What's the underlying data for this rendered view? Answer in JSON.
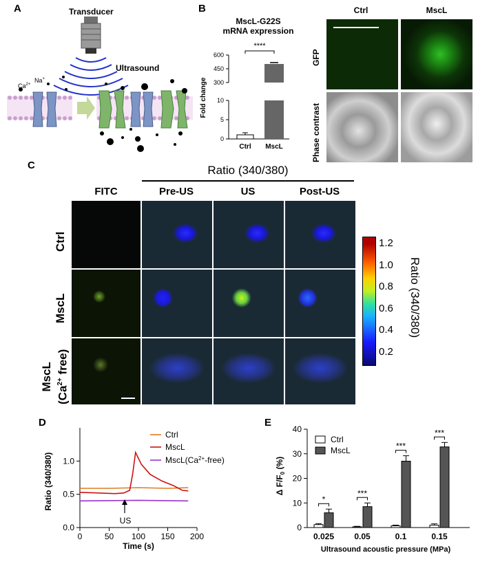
{
  "panels": {
    "a": "A",
    "b": "B",
    "c": "C",
    "d": "D",
    "e": "E"
  },
  "panel_a": {
    "transducer": "Transducer",
    "ultrasound": "Ultrasound",
    "ca_ion": "Ca",
    "ca_charge": "2+",
    "na_ion": "Na",
    "na_charge": "+"
  },
  "panel_b": {
    "title_line1": "MscL-G22S",
    "title_line2": "mRNA expression",
    "ylabel": "Fold change",
    "significance": "****",
    "image_cols": [
      "Ctrl",
      "MscL"
    ],
    "image_rows": [
      "GFP",
      "Phase contrast"
    ],
    "chart_data": {
      "type": "bar",
      "title": "MscL-G22S mRNA expression",
      "ylabel": "Fold change",
      "categories": [
        "Ctrl",
        "MscL"
      ],
      "values": [
        1,
        495
      ],
      "errors": [
        0.3,
        6
      ],
      "broken_axis": true,
      "yticks": [
        "0",
        "5",
        "10",
        "300",
        "450",
        "600"
      ]
    }
  },
  "panel_c": {
    "ratio_header": "Ratio (340/380)",
    "cols": [
      "FITC",
      "Pre-US",
      "US",
      "Post-US"
    ],
    "rows": [
      "Ctrl",
      "MscL"
    ],
    "row3_line1": "MscL",
    "row3_line2_pre": "(Ca",
    "row3_line2_sup": "2+",
    "row3_line2_post": " free)",
    "colorbar_label": "Ratio (340/380)",
    "colorbar_ticks": [
      "1.2",
      "1.0",
      "0.8",
      "0.6",
      "0.4",
      "0.2"
    ]
  },
  "panel_d": {
    "ylabel": "Ratio (340/380)",
    "xlabel": "Time (s)",
    "xticks": [
      "0",
      "50",
      "100",
      "150",
      "200"
    ],
    "yticks": [
      "0.0",
      "0.5",
      "1.0"
    ],
    "us_label": "US",
    "chart_data": {
      "type": "line",
      "xlabel": "Time (s)",
      "ylabel": "Ratio (340/380)",
      "xlim": [
        0,
        200
      ],
      "ylim": [
        0,
        1.5
      ],
      "series": [
        {
          "name": "Ctrl",
          "color": "#e07a1e",
          "x": [
            0,
            50,
            100,
            150,
            185
          ],
          "y": [
            0.59,
            0.59,
            0.6,
            0.59,
            0.6
          ]
        },
        {
          "name": "MscL",
          "color": "#cc1111",
          "x": [
            0,
            30,
            60,
            75,
            85,
            90,
            95,
            105,
            120,
            140,
            160,
            175,
            185
          ],
          "y": [
            0.53,
            0.52,
            0.51,
            0.52,
            0.56,
            0.8,
            1.13,
            0.95,
            0.8,
            0.7,
            0.63,
            0.56,
            0.55
          ]
        },
        {
          "name": "MscL(Ca2+-free)",
          "color": "#9933cc",
          "x": [
            0,
            100,
            185
          ],
          "y": [
            0.4,
            0.41,
            0.4
          ]
        }
      ]
    },
    "legend": [
      {
        "text": "Ctrl",
        "color": "#e07a1e"
      },
      {
        "text": "MscL",
        "color": "#cc1111"
      },
      {
        "text_pre": "MscL(Ca",
        "sup": "2+",
        "text_post": "-free)",
        "color": "#9933cc"
      }
    ]
  },
  "panel_e": {
    "ylabel_pre": "Δ F/F",
    "ylabel_sub": "0",
    "ylabel_post": " (%)",
    "xlabel": "Ultrasound acoustic pressure (MPa)",
    "legend_ctrl": "Ctrl",
    "legend_mscl": "MscL",
    "chart_data": {
      "type": "bar",
      "xlabel": "Ultrasound acoustic pressure (MPa)",
      "ylabel": "ΔF/F0 (%)",
      "ylim": [
        0,
        40
      ],
      "yticks": [
        0,
        10,
        20,
        30,
        40
      ],
      "categories": [
        "0.025",
        "0.05",
        "0.1",
        "0.15"
      ],
      "series": [
        {
          "name": "Ctrl",
          "color": "#ffffff",
          "values": [
            1.2,
            0.3,
            0.7,
            1.0
          ],
          "errors": [
            0.4,
            0.2,
            0.3,
            0.5
          ]
        },
        {
          "name": "MscL",
          "color": "#555555",
          "values": [
            6.0,
            8.5,
            27.0,
            32.8
          ],
          "errors": [
            1.5,
            1.5,
            2.2,
            1.8
          ]
        }
      ],
      "significance": [
        "*",
        "***",
        "***",
        "***"
      ]
    }
  }
}
